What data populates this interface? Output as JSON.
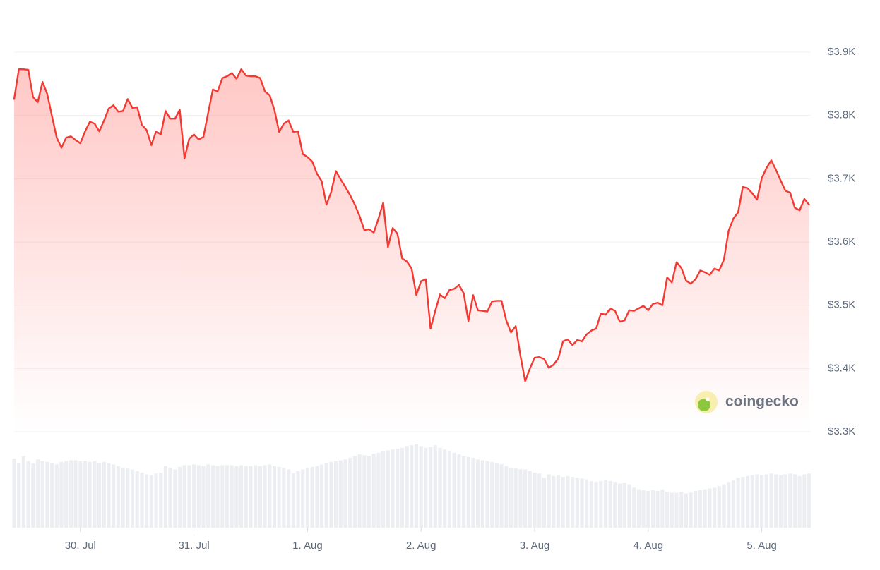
{
  "chart_data": {
    "type": "line",
    "color": "#f23a33",
    "volume_color": "#eceef1",
    "watermark": "coingecko",
    "grid": true,
    "xlim": [
      0,
      168
    ],
    "xticks": [
      {
        "value": 14,
        "label": "30. Jul"
      },
      {
        "value": 38,
        "label": "31. Jul"
      },
      {
        "value": 62,
        "label": "1. Aug"
      },
      {
        "value": 86,
        "label": "2. Aug"
      },
      {
        "value": 110,
        "label": "3. Aug"
      },
      {
        "value": 134,
        "label": "4. Aug"
      },
      {
        "value": 158,
        "label": "5. Aug"
      }
    ],
    "ylim": [
      3300,
      3900
    ],
    "yticks": [
      {
        "value": 3300,
        "label": "$3.3K"
      },
      {
        "value": 3400,
        "label": "$3.4K"
      },
      {
        "value": 3500,
        "label": "$3.5K"
      },
      {
        "value": 3600,
        "label": "$3.6K"
      },
      {
        "value": 3700,
        "label": "$3.7K"
      },
      {
        "value": 3800,
        "label": "$3.8K"
      },
      {
        "value": 3900,
        "label": "$3.9K"
      }
    ],
    "x": [
      0,
      1,
      2,
      3,
      4,
      5,
      6,
      7,
      8,
      9,
      10,
      11,
      12,
      13,
      14,
      15,
      16,
      17,
      18,
      19,
      20,
      21,
      22,
      23,
      24,
      25,
      26,
      27,
      28,
      29,
      30,
      31,
      32,
      33,
      34,
      35,
      36,
      37,
      38,
      39,
      40,
      41,
      42,
      43,
      44,
      45,
      46,
      47,
      48,
      49,
      50,
      51,
      52,
      53,
      54,
      55,
      56,
      57,
      58,
      59,
      60,
      61,
      62,
      63,
      64,
      65,
      66,
      67,
      68,
      69,
      70,
      71,
      72,
      73,
      74,
      75,
      76,
      77,
      78,
      79,
      80,
      81,
      82,
      83,
      84,
      85,
      86,
      87,
      88,
      89,
      90,
      91,
      92,
      93,
      94,
      95,
      96,
      97,
      98,
      99,
      100,
      101,
      102,
      103,
      104,
      105,
      106,
      107,
      108,
      109,
      110,
      111,
      112,
      113,
      114,
      115,
      116,
      117,
      118,
      119,
      120,
      121,
      122,
      123,
      124,
      125,
      126,
      127,
      128,
      129,
      130,
      131,
      132,
      133,
      134,
      135,
      136,
      137,
      138,
      139,
      140,
      141,
      142,
      143,
      144,
      145,
      146,
      147,
      148,
      149,
      150,
      151,
      152,
      153,
      154,
      155,
      156,
      157,
      158,
      159,
      160,
      161,
      162,
      163,
      164,
      165,
      166,
      167,
      168
    ],
    "values": [
      3826,
      3873,
      3873,
      3872,
      3829,
      3821,
      3853,
      3834,
      3799,
      3765,
      3749,
      3765,
      3767,
      3761,
      3756,
      3775,
      3790,
      3787,
      3775,
      3792,
      3811,
      3816,
      3806,
      3807,
      3826,
      3812,
      3813,
      3785,
      3777,
      3753,
      3775,
      3770,
      3807,
      3795,
      3795,
      3809,
      3732,
      3763,
      3770,
      3762,
      3766,
      3804,
      3841,
      3838,
      3859,
      3862,
      3867,
      3858,
      3873,
      3863,
      3862,
      3862,
      3859,
      3838,
      3832,
      3809,
      3774,
      3787,
      3792,
      3774,
      3775,
      3739,
      3734,
      3727,
      3708,
      3696,
      3659,
      3679,
      3712,
      3699,
      3687,
      3674,
      3659,
      3641,
      3619,
      3620,
      3615,
      3637,
      3662,
      3592,
      3622,
      3613,
      3574,
      3569,
      3558,
      3516,
      3538,
      3541,
      3463,
      3491,
      3517,
      3511,
      3524,
      3526,
      3532,
      3519,
      3475,
      3516,
      3492,
      3491,
      3490,
      3506,
      3507,
      3507,
      3476,
      3457,
      3467,
      3420,
      3380,
      3400,
      3417,
      3418,
      3415,
      3401,
      3406,
      3416,
      3443,
      3446,
      3437,
      3445,
      3443,
      3454,
      3460,
      3463,
      3487,
      3485,
      3495,
      3491,
      3474,
      3476,
      3492,
      3491,
      3495,
      3499,
      3492,
      3502,
      3504,
      3500,
      3544,
      3536,
      3568,
      3559,
      3539,
      3534,
      3541,
      3555,
      3552,
      3548,
      3558,
      3555,
      3572,
      3618,
      3637,
      3647,
      3687,
      3685,
      3677,
      3667,
      3701,
      3717,
      3729,
      3714,
      3697,
      3681,
      3678,
      3654,
      3650,
      3668,
      3659
    ],
    "volume_lim": [
      0,
      100
    ],
    "volumes": [
      83,
      78,
      86,
      80,
      77,
      82,
      80,
      79,
      78,
      76,
      79,
      80,
      81,
      81,
      80,
      80,
      79,
      80,
      78,
      79,
      77,
      76,
      74,
      72,
      71,
      70,
      68,
      66,
      64,
      63,
      65,
      66,
      74,
      72,
      70,
      73,
      75,
      75,
      76,
      75,
      74,
      76,
      75,
      74,
      75,
      75,
      75,
      74,
      75,
      74,
      74,
      75,
      74,
      75,
      76,
      74,
      73,
      72,
      70,
      65,
      68,
      70,
      72,
      73,
      74,
      76,
      78,
      79,
      80,
      81,
      82,
      84,
      86,
      88,
      87,
      86,
      89,
      90,
      92,
      93,
      94,
      95,
      96,
      98,
      99,
      100,
      98,
      96,
      97,
      99,
      96,
      94,
      92,
      90,
      88,
      86,
      85,
      84,
      82,
      81,
      80,
      79,
      78,
      76,
      74,
      72,
      71,
      70,
      70,
      68,
      66,
      65,
      60,
      64,
      62,
      63,
      61,
      62,
      61,
      60,
      59,
      58,
      56,
      55,
      56,
      57,
      56,
      55,
      53,
      54,
      52,
      48,
      46,
      45,
      44,
      45,
      44,
      46,
      43,
      42,
      42,
      43,
      41,
      42,
      44,
      45,
      46,
      47,
      48,
      50,
      52,
      55,
      57,
      60,
      61,
      62,
      63,
      64,
      63,
      64,
      65,
      64,
      63,
      64,
      65,
      64,
      62,
      64,
      65
    ]
  }
}
